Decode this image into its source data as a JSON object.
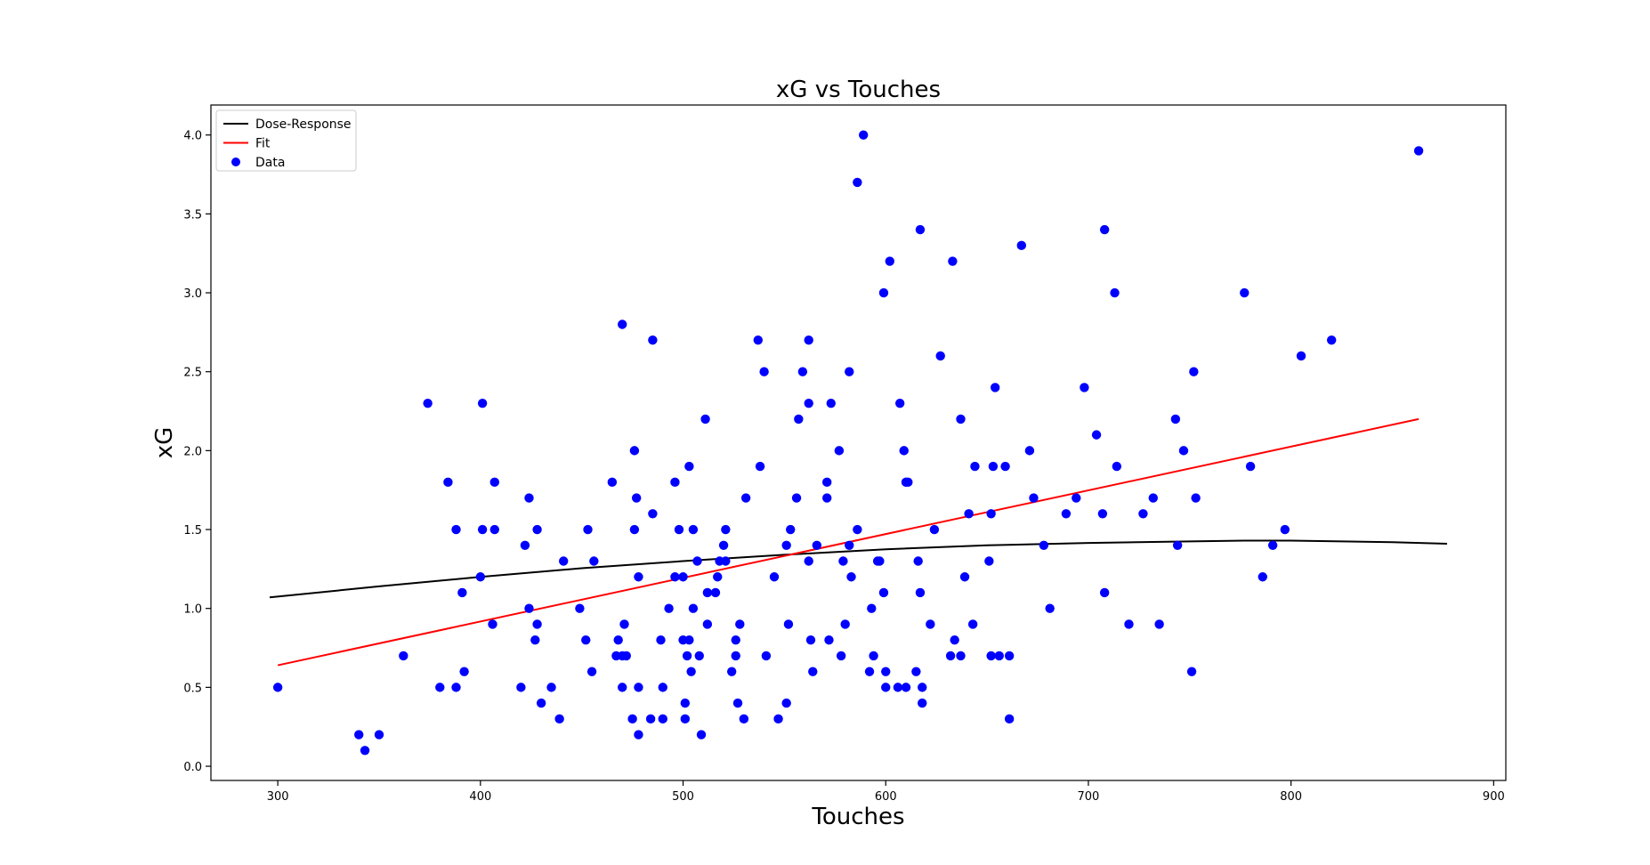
{
  "chart_data": {
    "type": "scatter",
    "title": "xG  vs Touches",
    "xlabel": "Touches",
    "ylabel": "xG",
    "xlim": [
      267,
      906
    ],
    "ylim": [
      -0.09,
      4.19
    ],
    "xticks": [
      300,
      400,
      500,
      600,
      700,
      800,
      900
    ],
    "yticks": [
      0.0,
      0.5,
      1.0,
      1.5,
      2.0,
      2.5,
      3.0,
      3.5,
      4.0
    ],
    "ytick_labels": [
      "0.0",
      "0.5",
      "1.0",
      "1.5",
      "2.0",
      "2.5",
      "3.0",
      "3.5",
      "4.0"
    ],
    "grid": false,
    "legend_position": "top-left",
    "colors": {
      "data": "#0000ff",
      "fit": "#ff0000",
      "dose_response": "#000000"
    },
    "series": [
      {
        "name": "Dose-Response",
        "kind": "line",
        "x": [
          296,
          350,
          400,
          450,
          500,
          550,
          600,
          650,
          700,
          750,
          780,
          800,
          850,
          877
        ],
        "y": [
          1.07,
          1.14,
          1.2,
          1.255,
          1.3,
          1.34,
          1.375,
          1.4,
          1.415,
          1.425,
          1.43,
          1.43,
          1.42,
          1.41
        ]
      },
      {
        "name": "Fit",
        "kind": "line",
        "x": [
          300,
          863
        ],
        "y": [
          0.64,
          2.2
        ]
      },
      {
        "name": "Data",
        "kind": "scatter",
        "points": [
          [
            300,
            0.5
          ],
          [
            340,
            0.2
          ],
          [
            343,
            0.1
          ],
          [
            350,
            0.2
          ],
          [
            362,
            0.7
          ],
          [
            374,
            2.3
          ],
          [
            380,
            0.5
          ],
          [
            384,
            1.8
          ],
          [
            388,
            0.5
          ],
          [
            388,
            1.5
          ],
          [
            391,
            1.1
          ],
          [
            392,
            0.6
          ],
          [
            400,
            1.2
          ],
          [
            401,
            2.3
          ],
          [
            401,
            1.5
          ],
          [
            406,
            0.9
          ],
          [
            407,
            1.8
          ],
          [
            407,
            1.5
          ],
          [
            420,
            0.5
          ],
          [
            422,
            1.4
          ],
          [
            424,
            1.7
          ],
          [
            424,
            1.0
          ],
          [
            427,
            0.8
          ],
          [
            428,
            0.9
          ],
          [
            428,
            1.5
          ],
          [
            430,
            0.4
          ],
          [
            435,
            0.5
          ],
          [
            439,
            0.3
          ],
          [
            441,
            1.3
          ],
          [
            449,
            1.0
          ],
          [
            452,
            0.8
          ],
          [
            453,
            1.5
          ],
          [
            455,
            0.6
          ],
          [
            456,
            1.3
          ],
          [
            465,
            1.8
          ],
          [
            467,
            0.7
          ],
          [
            468,
            0.8
          ],
          [
            470,
            0.7
          ],
          [
            470,
            0.5
          ],
          [
            470,
            2.8
          ],
          [
            471,
            0.9
          ],
          [
            472,
            0.7
          ],
          [
            475,
            0.3
          ],
          [
            476,
            1.5
          ],
          [
            476,
            2.0
          ],
          [
            477,
            1.7
          ],
          [
            478,
            0.5
          ],
          [
            478,
            1.2
          ],
          [
            478,
            0.2
          ],
          [
            484,
            0.3
          ],
          [
            485,
            1.6
          ],
          [
            485,
            2.7
          ],
          [
            489,
            0.8
          ],
          [
            490,
            0.5
          ],
          [
            490,
            0.3
          ],
          [
            493,
            1.0
          ],
          [
            496,
            1.8
          ],
          [
            496,
            1.2
          ],
          [
            498,
            1.5
          ],
          [
            500,
            1.2
          ],
          [
            500,
            0.8
          ],
          [
            501,
            0.4
          ],
          [
            501,
            0.3
          ],
          [
            502,
            0.7
          ],
          [
            503,
            0.8
          ],
          [
            503,
            1.9
          ],
          [
            504,
            0.6
          ],
          [
            505,
            1.0
          ],
          [
            505,
            1.5
          ],
          [
            507,
            1.3
          ],
          [
            508,
            0.7
          ],
          [
            509,
            0.2
          ],
          [
            511,
            2.2
          ],
          [
            512,
            1.1
          ],
          [
            512,
            0.9
          ],
          [
            516,
            1.1
          ],
          [
            517,
            1.2
          ],
          [
            518,
            1.3
          ],
          [
            520,
            1.4
          ],
          [
            521,
            1.5
          ],
          [
            521,
            1.3
          ],
          [
            524,
            0.6
          ],
          [
            526,
            0.8
          ],
          [
            526,
            0.7
          ],
          [
            527,
            0.4
          ],
          [
            528,
            0.9
          ],
          [
            530,
            0.3
          ],
          [
            531,
            1.7
          ],
          [
            537,
            2.7
          ],
          [
            538,
            1.9
          ],
          [
            540,
            2.5
          ],
          [
            541,
            0.7
          ],
          [
            545,
            1.2
          ],
          [
            547,
            0.3
          ],
          [
            551,
            0.4
          ],
          [
            551,
            1.4
          ],
          [
            552,
            0.9
          ],
          [
            553,
            1.5
          ],
          [
            556,
            1.7
          ],
          [
            557,
            2.2
          ],
          [
            559,
            2.5
          ],
          [
            562,
            1.3
          ],
          [
            562,
            2.3
          ],
          [
            562,
            2.7
          ],
          [
            563,
            0.8
          ],
          [
            564,
            0.6
          ],
          [
            566,
            1.4
          ],
          [
            571,
            1.7
          ],
          [
            571,
            1.8
          ],
          [
            572,
            0.8
          ],
          [
            573,
            2.3
          ],
          [
            577,
            2.0
          ],
          [
            578,
            0.7
          ],
          [
            579,
            1.3
          ],
          [
            580,
            0.9
          ],
          [
            582,
            2.5
          ],
          [
            582,
            1.4
          ],
          [
            583,
            1.2
          ],
          [
            586,
            1.5
          ],
          [
            586,
            3.7
          ],
          [
            589,
            4.0
          ],
          [
            592,
            0.6
          ],
          [
            593,
            1.0
          ],
          [
            594,
            0.7
          ],
          [
            596,
            1.3
          ],
          [
            597,
            1.3
          ],
          [
            599,
            1.1
          ],
          [
            599,
            3.0
          ],
          [
            600,
            0.6
          ],
          [
            600,
            0.5
          ],
          [
            602,
            3.2
          ],
          [
            606,
            0.5
          ],
          [
            607,
            2.3
          ],
          [
            609,
            2.0
          ],
          [
            610,
            0.5
          ],
          [
            610,
            1.8
          ],
          [
            611,
            1.8
          ],
          [
            615,
            0.6
          ],
          [
            616,
            1.3
          ],
          [
            617,
            3.4
          ],
          [
            617,
            1.1
          ],
          [
            618,
            0.5
          ],
          [
            618,
            0.4
          ],
          [
            622,
            0.9
          ],
          [
            624,
            1.5
          ],
          [
            627,
            2.6
          ],
          [
            632,
            0.7
          ],
          [
            633,
            3.2
          ],
          [
            634,
            0.8
          ],
          [
            637,
            0.7
          ],
          [
            637,
            2.2
          ],
          [
            639,
            1.2
          ],
          [
            641,
            1.6
          ],
          [
            643,
            0.9
          ],
          [
            644,
            1.9
          ],
          [
            651,
            1.3
          ],
          [
            652,
            1.6
          ],
          [
            652,
            0.7
          ],
          [
            653,
            1.9
          ],
          [
            654,
            2.4
          ],
          [
            656,
            0.7
          ],
          [
            659,
            1.9
          ],
          [
            661,
            0.7
          ],
          [
            661,
            0.3
          ],
          [
            667,
            3.3
          ],
          [
            671,
            2.0
          ],
          [
            673,
            1.7
          ],
          [
            678,
            1.4
          ],
          [
            681,
            1.0
          ],
          [
            689,
            1.6
          ],
          [
            694,
            1.7
          ],
          [
            698,
            2.4
          ],
          [
            704,
            2.1
          ],
          [
            707,
            1.6
          ],
          [
            708,
            1.1
          ],
          [
            708,
            3.4
          ],
          [
            713,
            3.0
          ],
          [
            714,
            1.9
          ],
          [
            720,
            0.9
          ],
          [
            727,
            1.6
          ],
          [
            732,
            1.7
          ],
          [
            735,
            0.9
          ],
          [
            743,
            2.2
          ],
          [
            744,
            1.4
          ],
          [
            747,
            2.0
          ],
          [
            751,
            0.6
          ],
          [
            752,
            2.5
          ],
          [
            753,
            1.7
          ],
          [
            777,
            3.0
          ],
          [
            780,
            1.9
          ],
          [
            786,
            1.2
          ],
          [
            791,
            1.4
          ],
          [
            797,
            1.5
          ],
          [
            805,
            2.6
          ],
          [
            820,
            2.7
          ],
          [
            863,
            3.9
          ]
        ]
      }
    ]
  }
}
